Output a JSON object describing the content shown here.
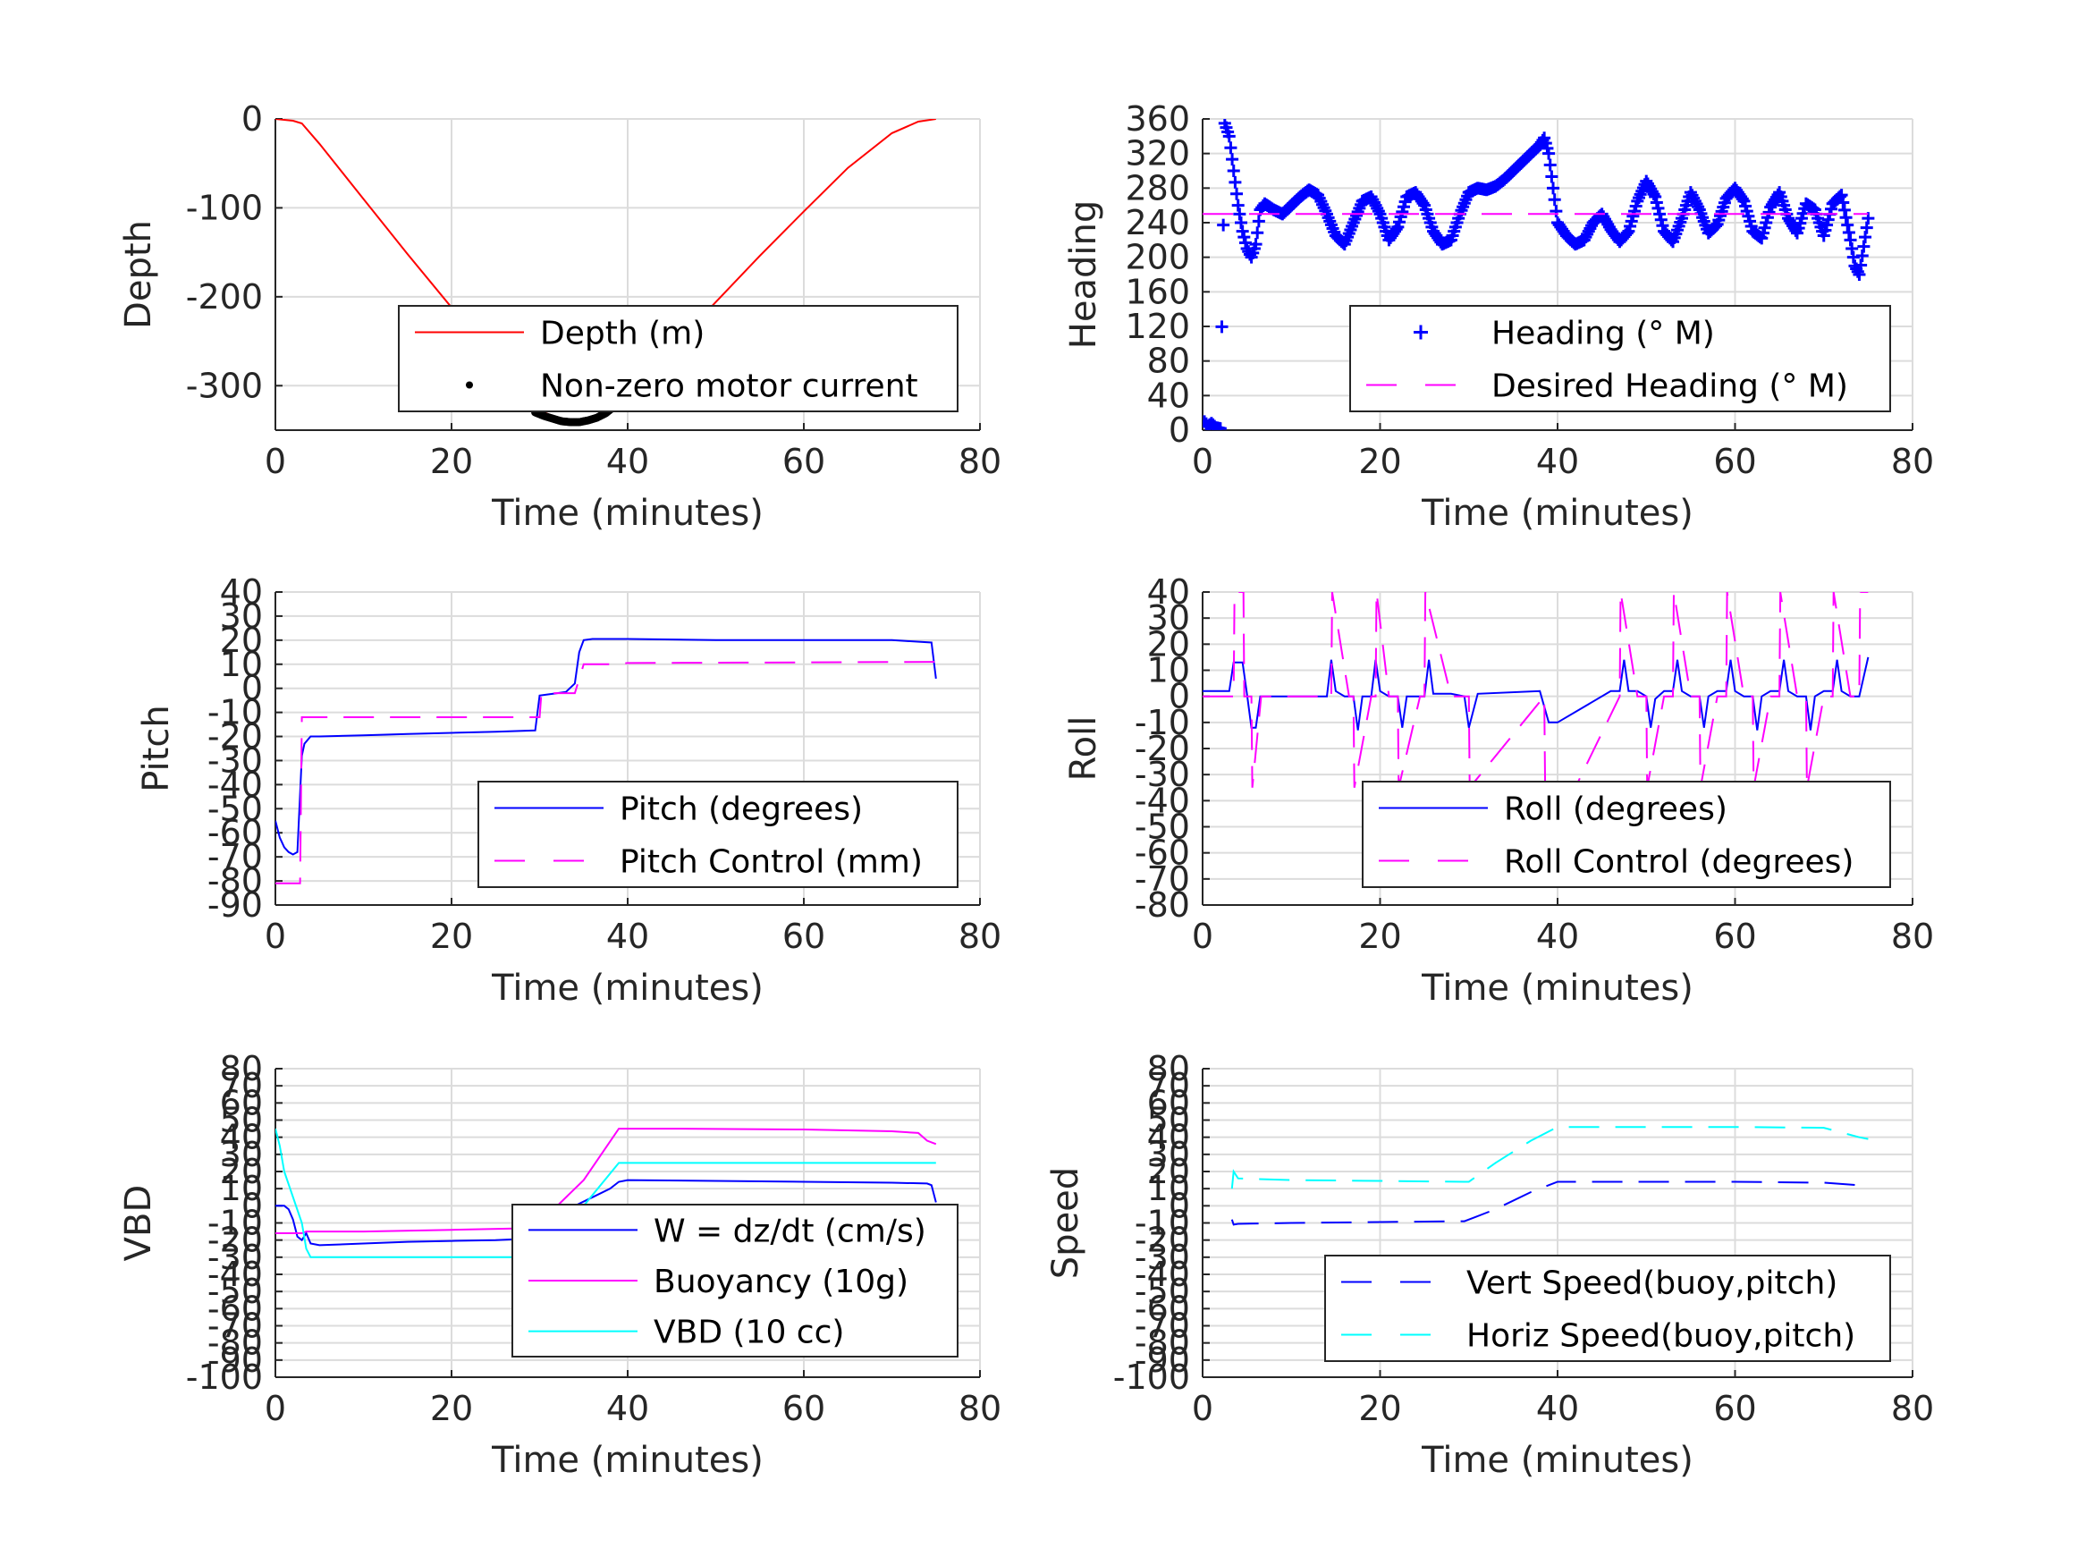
{
  "chart_data": [
    {
      "id": "depth",
      "type": "line",
      "xlabel": "Time (minutes)",
      "ylabel": "Depth",
      "xlim": [
        0,
        80
      ],
      "ylim": [
        -350,
        0
      ],
      "xticks": [
        "0",
        "20",
        "40",
        "60",
        "80"
      ],
      "yticks": [
        "0",
        "-100",
        "-200",
        "-300"
      ],
      "ytick_values": [
        0,
        -100,
        -200,
        -300
      ],
      "legend_position": "bottom-right",
      "series": [
        {
          "name": "Depth (m)",
          "color": "#ff0000",
          "style": "solid",
          "x": [
            0,
            2,
            3,
            5,
            10,
            15,
            20,
            25,
            30,
            33,
            36,
            38,
            40,
            45,
            50,
            55,
            60,
            65,
            70,
            73,
            75
          ],
          "y": [
            0,
            -2,
            -5,
            -28,
            -90,
            -152,
            -212,
            -268,
            -328,
            -340,
            -338,
            -330,
            -310,
            -258,
            -206,
            -154,
            -104,
            -55,
            -16,
            -3,
            0
          ]
        },
        {
          "name": "Non-zero motor current",
          "color": "#000000",
          "style": "dots",
          "x": [
            29.5,
            30.5,
            31.5,
            32.5,
            33.5,
            34.5,
            35.5,
            36.5,
            37.5,
            38.5
          ],
          "y": [
            -330,
            -334,
            -337,
            -340,
            -341,
            -341,
            -339,
            -336,
            -331,
            -323
          ]
        }
      ]
    },
    {
      "id": "heading",
      "type": "line",
      "xlabel": "Time (minutes)",
      "ylabel": "Heading",
      "xlim": [
        0,
        80
      ],
      "ylim": [
        0,
        360
      ],
      "xticks": [
        "0",
        "20",
        "40",
        "60",
        "80"
      ],
      "yticks": [
        "0",
        "40",
        "80",
        "120",
        "160",
        "200",
        "240",
        "280",
        "320",
        "360"
      ],
      "ytick_values": [
        0,
        40,
        80,
        120,
        160,
        200,
        240,
        280,
        320,
        360
      ],
      "legend_position": "bottom-right",
      "series": [
        {
          "name": "Heading (° M)",
          "color": "#0000ff",
          "style": "plus",
          "x": [
            0.2,
            0.6,
            1.0,
            1.5,
            2.0,
            2.5,
            3.0,
            3.5,
            4.0,
            4.5,
            5.0,
            5.5,
            6.0,
            6.5,
            7,
            8,
            9,
            10,
            11,
            12,
            13,
            14,
            15,
            16,
            17,
            18,
            19,
            20,
            21,
            22,
            23,
            24,
            25,
            26,
            27,
            28,
            29,
            30,
            31,
            32,
            33,
            34,
            35,
            36,
            37,
            38,
            38.5,
            39,
            40,
            41,
            42,
            43,
            44,
            45,
            46,
            47,
            48,
            49,
            50,
            51,
            52,
            53,
            54,
            55,
            56,
            57,
            58,
            59,
            60,
            61,
            62,
            63,
            64,
            65,
            66,
            67,
            68,
            69,
            70,
            71,
            72,
            73,
            73.5,
            74,
            75
          ],
          "y": [
            10,
            5,
            8,
            3,
            2,
            355,
            340,
            300,
            260,
            230,
            210,
            200,
            215,
            255,
            262,
            255,
            250,
            260,
            270,
            278,
            272,
            250,
            225,
            215,
            240,
            265,
            270,
            250,
            220,
            235,
            270,
            275,
            260,
            230,
            215,
            220,
            250,
            275,
            280,
            278,
            282,
            290,
            300,
            310,
            320,
            330,
            338,
            320,
            240,
            225,
            215,
            220,
            240,
            250,
            232,
            218,
            230,
            265,
            288,
            270,
            230,
            218,
            245,
            275,
            255,
            228,
            238,
            268,
            280,
            265,
            230,
            222,
            258,
            275,
            245,
            228,
            262,
            255,
            225,
            262,
            272,
            220,
            190,
            180,
            245
          ]
        },
        {
          "name": "Desired Heading (° M)",
          "color": "#ff00ff",
          "style": "dashed",
          "x": [
            0,
            75
          ],
          "y": [
            250,
            250
          ]
        }
      ]
    },
    {
      "id": "pitch",
      "type": "line",
      "xlabel": "Time (minutes)",
      "ylabel": "Pitch",
      "xlim": [
        0,
        80
      ],
      "ylim": [
        -90,
        40
      ],
      "xticks": [
        "0",
        "20",
        "40",
        "60",
        "80"
      ],
      "yticks": [
        "40",
        "30",
        "20",
        "10",
        "0",
        "-10",
        "-20",
        "-30",
        "-40",
        "-50",
        "-60",
        "-70",
        "-80",
        "-90"
      ],
      "ytick_values": [
        40,
        30,
        20,
        10,
        0,
        -10,
        -20,
        -30,
        -40,
        -50,
        -60,
        -70,
        -80,
        -90
      ],
      "legend_position": "bottom-right",
      "series": [
        {
          "name": "Pitch (degrees)",
          "color": "#0000ff",
          "style": "solid",
          "x": [
            0,
            0.5,
            1,
            1.5,
            2,
            2.5,
            3,
            3.3,
            4,
            5,
            10,
            15,
            20,
            25,
            29.5,
            30,
            32,
            33,
            34,
            34.5,
            35,
            36,
            40,
            50,
            60,
            70,
            74.5,
            75
          ],
          "y": [
            -55,
            -62,
            -66,
            -68,
            -69,
            -68,
            -28,
            -23,
            -20,
            -20,
            -19.5,
            -19,
            -18.5,
            -18,
            -17.5,
            -3,
            -2,
            -1.5,
            2,
            15,
            20,
            20.5,
            20.5,
            20,
            20,
            20,
            19,
            4
          ]
        },
        {
          "name": "Pitch Control (mm)",
          "color": "#ff00ff",
          "style": "dashed",
          "x": [
            0,
            2.8,
            3,
            30,
            30.2,
            34,
            35,
            38,
            40,
            75
          ],
          "y": [
            -81,
            -81,
            -12,
            -12,
            -2,
            -2,
            10,
            10,
            10.5,
            11
          ]
        }
      ]
    },
    {
      "id": "roll",
      "type": "line",
      "xlabel": "Time (minutes)",
      "ylabel": "Roll",
      "xlim": [
        0,
        80
      ],
      "ylim": [
        -80,
        40
      ],
      "xticks": [
        "0",
        "20",
        "40",
        "60",
        "80"
      ],
      "yticks": [
        "40",
        "30",
        "20",
        "10",
        "0",
        "-10",
        "-20",
        "-30",
        "-40",
        "-50",
        "-60",
        "-70",
        "-80"
      ],
      "ytick_values": [
        40,
        30,
        20,
        10,
        0,
        -10,
        -20,
        -30,
        -40,
        -50,
        -60,
        -70,
        -80
      ],
      "legend_position": "bottom-right",
      "series": [
        {
          "name": "Roll (degrees)",
          "color": "#0000ff",
          "style": "solid",
          "x": [
            0,
            3,
            3.5,
            4.5,
            5,
            5.5,
            6,
            6.5,
            10,
            14,
            14.5,
            15,
            16,
            17,
            17.5,
            18,
            19,
            19.5,
            20,
            21,
            22,
            22.5,
            23,
            25,
            25.5,
            26,
            28,
            29.5,
            30,
            31,
            38,
            39,
            40,
            46,
            47,
            47.5,
            48,
            49,
            50,
            50.5,
            51,
            52,
            53,
            53.5,
            54,
            55,
            56,
            56.5,
            57,
            58,
            59,
            59.5,
            60,
            61,
            62,
            62.5,
            63,
            64,
            65,
            65.5,
            66,
            67,
            68,
            68.5,
            69,
            70,
            71,
            71.5,
            72,
            73,
            74,
            75
          ],
          "y": [
            2,
            2,
            13,
            13,
            1,
            -12,
            -12,
            0,
            0,
            0,
            14,
            2,
            0,
            0,
            -13,
            0,
            0,
            14,
            2,
            0,
            0,
            -12,
            0,
            0,
            14,
            1,
            1,
            0,
            -12,
            1,
            2,
            -10,
            -10,
            2,
            2,
            14,
            2,
            2,
            0,
            -12,
            -1,
            2,
            2,
            14,
            2,
            0,
            0,
            -12,
            0,
            2,
            2,
            14,
            2,
            0,
            0,
            -13,
            0,
            2,
            2,
            14,
            2,
            0,
            0,
            -13,
            0,
            2,
            2,
            14,
            2,
            0,
            0,
            15
          ]
        },
        {
          "name": "Roll Control (degrees)",
          "color": "#ff00ff",
          "style": "dashed",
          "x": [
            0,
            3.5,
            3.6,
            4.6,
            4.7,
            5.5,
            5.6,
            6.6,
            14,
            14.5,
            14.6,
            16.5,
            17,
            17.1,
            19,
            19.5,
            19.6,
            21,
            22,
            22.1,
            24.5,
            25,
            25.1,
            28,
            30,
            30.1,
            38.5,
            38.6,
            42,
            47,
            47.1,
            49,
            50,
            50.1,
            52,
            53,
            53.1,
            55,
            56,
            56.1,
            58,
            59,
            59.1,
            61,
            62,
            62.1,
            64,
            65,
            65.1,
            67,
            68,
            68.1,
            70,
            71,
            71.1,
            73,
            74,
            74.1,
            75
          ],
          "y": [
            0,
            0,
            40,
            40,
            0,
            0,
            -35,
            0,
            0,
            0,
            40,
            0,
            0,
            -35,
            0,
            0,
            40,
            0,
            0,
            -35,
            0,
            0,
            40,
            0,
            0,
            -35,
            0,
            -35,
            -35,
            0,
            40,
            0,
            0,
            -35,
            0,
            0,
            40,
            0,
            0,
            -35,
            0,
            0,
            40,
            0,
            0,
            -35,
            0,
            0,
            40,
            0,
            0,
            -35,
            0,
            0,
            40,
            0,
            0,
            40,
            40
          ]
        }
      ]
    },
    {
      "id": "vbd",
      "type": "line",
      "xlabel": "Time (minutes)",
      "ylabel": "VBD",
      "xlim": [
        0,
        80
      ],
      "ylim": [
        -100,
        80
      ],
      "xticks": [
        "0",
        "20",
        "40",
        "60",
        "80"
      ],
      "yticks": [
        "80",
        "70",
        "60",
        "50",
        "40",
        "30",
        "20",
        "10",
        "0",
        "-10",
        "-20",
        "-30",
        "-40",
        "-50",
        "-60",
        "-70",
        "-80",
        "-90",
        "-100"
      ],
      "ytick_values": [
        80,
        70,
        60,
        50,
        40,
        30,
        20,
        10,
        0,
        -10,
        -20,
        -30,
        -40,
        -50,
        -60,
        -70,
        -80,
        -90,
        -100
      ],
      "legend_position": "bottom-right",
      "series": [
        {
          "name": "W = dz/dt (cm/s)",
          "color": "#0000ff",
          "style": "solid",
          "x": [
            0,
            1,
            1.5,
            2,
            2.5,
            3,
            3.5,
            4,
            5,
            10,
            15,
            20,
            25,
            29.5,
            30,
            32,
            34,
            36,
            38,
            39,
            40,
            50,
            60,
            70,
            74,
            74.5,
            75
          ],
          "y": [
            0,
            0,
            -2,
            -8,
            -18,
            -20,
            -16,
            -22,
            -23,
            -22,
            -21,
            -20.5,
            -20,
            -19,
            -10,
            -8,
            0,
            5,
            10,
            14,
            15,
            14.5,
            14,
            13.5,
            13,
            12,
            2
          ]
        },
        {
          "name": "Buoyancy (10g)",
          "color": "#ff00ff",
          "style": "solid",
          "x": [
            0,
            3,
            3.5,
            10,
            20,
            29.5,
            30,
            35,
            39,
            45,
            60,
            70,
            73,
            74,
            75
          ],
          "y": [
            -16,
            -16,
            -15,
            -15,
            -14,
            -13,
            -10,
            15,
            45,
            45,
            44.5,
            43.5,
            42.5,
            38,
            36
          ]
        },
        {
          "name": "VBD (10 cc)",
          "color": "#00ffff",
          "style": "solid",
          "x": [
            0,
            0.5,
            1,
            3,
            3.5,
            4,
            10,
            20,
            29.5,
            30,
            35,
            39,
            45,
            60,
            70,
            75
          ],
          "y": [
            45,
            35,
            20,
            -10,
            -25,
            -30,
            -30,
            -30,
            -30,
            -30,
            0,
            25,
            25,
            25,
            25,
            25
          ]
        }
      ]
    },
    {
      "id": "speed",
      "type": "line",
      "xlabel": "Time (minutes)",
      "ylabel": "Speed",
      "xlim": [
        0,
        80
      ],
      "ylim": [
        -100,
        80
      ],
      "xticks": [
        "0",
        "20",
        "40",
        "60",
        "80"
      ],
      "yticks": [
        "80",
        "70",
        "60",
        "50",
        "40",
        "30",
        "20",
        "10",
        "0",
        "-10",
        "-20",
        "-30",
        "-40",
        "-50",
        "-60",
        "-70",
        "-80",
        "-90",
        "-100"
      ],
      "ytick_values": [
        80,
        70,
        60,
        50,
        40,
        30,
        20,
        10,
        0,
        -10,
        -20,
        -30,
        -40,
        -50,
        -60,
        -70,
        -80,
        -90,
        -100
      ],
      "legend_position": "bottom-right",
      "series": [
        {
          "name": "Vert Speed(buoy,pitch)",
          "color": "#0000ff",
          "style": "dashed",
          "x": [
            3.3,
            3.5,
            4,
            10,
            20,
            29.5,
            30,
            33,
            37,
            40,
            50,
            60,
            70,
            74,
            75
          ],
          "y": [
            -8,
            -11,
            -10.5,
            -10,
            -9.5,
            -9,
            -8,
            -2,
            8,
            14,
            14,
            14,
            13.5,
            12,
            12
          ]
        },
        {
          "name": "Horiz Speed(buoy,pitch)",
          "color": "#00ffff",
          "style": "dashed",
          "x": [
            3.3,
            3.5,
            4,
            10,
            20,
            29.5,
            30,
            33,
            37,
            40,
            50,
            60,
            70,
            74,
            75
          ],
          "y": [
            10,
            20,
            16,
            15,
            14.5,
            14,
            14,
            25,
            38,
            46,
            46,
            46,
            45.5,
            40,
            39
          ]
        }
      ]
    }
  ]
}
